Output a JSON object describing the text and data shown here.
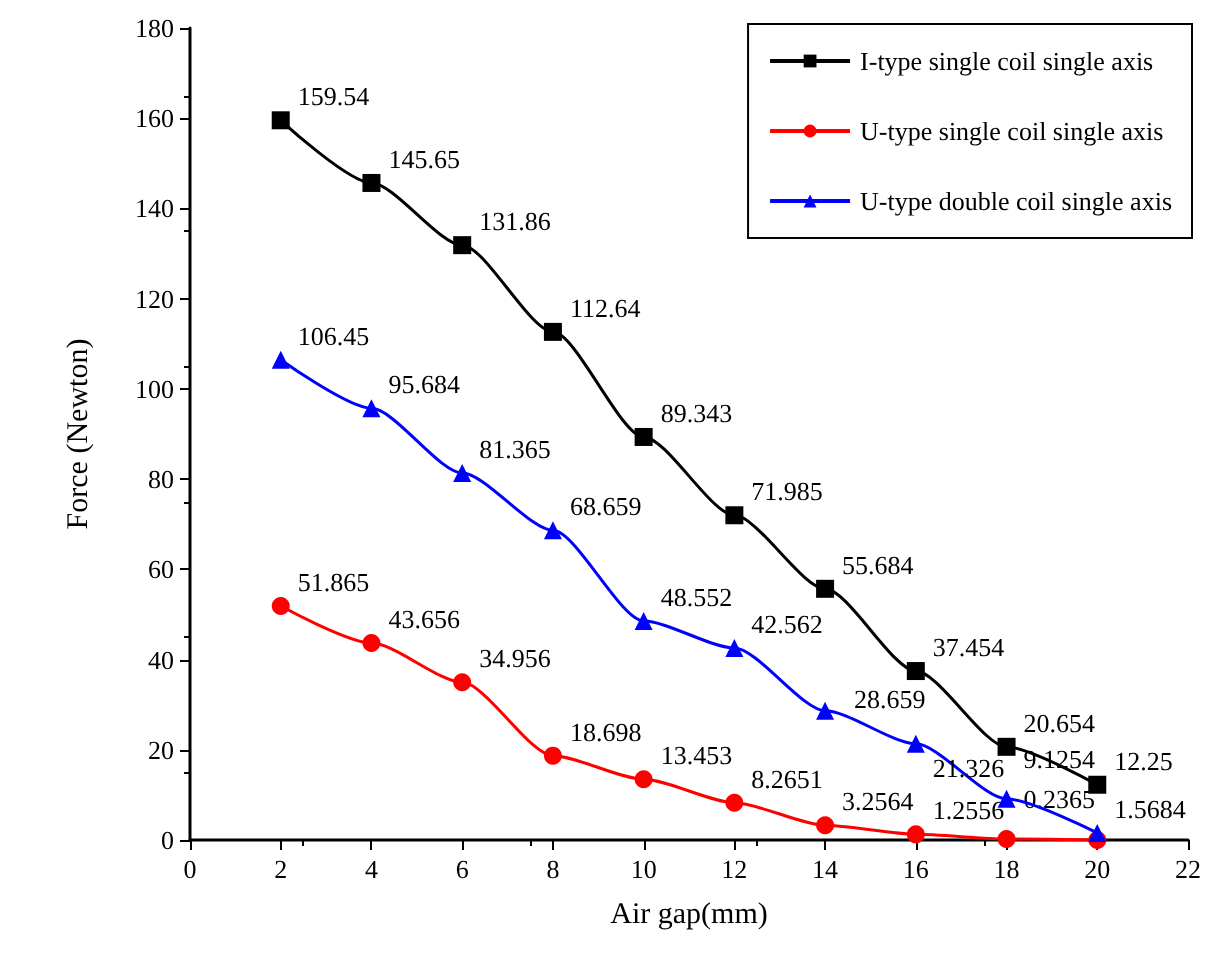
{
  "chart_data": {
    "type": "line",
    "xlabel": "Air gap(mm)",
    "ylabel": "Force (Newton)",
    "xlim": [
      0,
      22
    ],
    "xticks": [
      0,
      2,
      4,
      6,
      8,
      10,
      12,
      14,
      16,
      18,
      20,
      22
    ],
    "ylim": [
      0,
      180
    ],
    "yticks": [
      0,
      20,
      40,
      60,
      80,
      100,
      120,
      140,
      160,
      180
    ],
    "grid": false,
    "legend": "top right",
    "series": [
      {
        "name": "I-type single coil single axis",
        "color": "#000000",
        "marker": "square",
        "x": [
          2,
          4,
          6,
          8,
          10,
          12,
          14,
          16,
          18,
          20
        ],
        "values": [
          159.54,
          145.65,
          131.86,
          112.64,
          89.343,
          71.985,
          55.684,
          37.454,
          20.654,
          12.25
        ],
        "value_labels": [
          "159.54",
          "145.65",
          "131.86",
          "112.64",
          "89.343",
          "71.985",
          "55.684",
          "37.454",
          "20.654",
          "12.25"
        ]
      },
      {
        "name": "U-type single coil single axis",
        "color": "#ff0000",
        "marker": "circle",
        "x": [
          2,
          4,
          6,
          8,
          10,
          12,
          14,
          16,
          18,
          20
        ],
        "values": [
          51.865,
          43.656,
          34.956,
          18.698,
          13.453,
          8.2651,
          3.2564,
          1.2556,
          0.2365,
          0
        ],
        "value_labels": [
          "51.865",
          "43.656",
          "34.956",
          "18.698",
          "13.453",
          "8.2651",
          "3.2564",
          "1.2556",
          "0.2365",
          null
        ]
      },
      {
        "name": "U-type double coil single axis",
        "color": "#0000ff",
        "marker": "triangle",
        "x": [
          2,
          4,
          6,
          8,
          10,
          12,
          14,
          16,
          18,
          20
        ],
        "values": [
          106.45,
          95.684,
          81.365,
          68.659,
          48.552,
          42.562,
          28.659,
          21.326,
          9.1254,
          1.5684
        ],
        "value_labels": [
          "106.45",
          "95.684",
          "81.365",
          "68.659",
          "48.552",
          "42.562",
          "28.659",
          "21.326",
          "9.1254",
          "1.5684"
        ]
      }
    ]
  }
}
